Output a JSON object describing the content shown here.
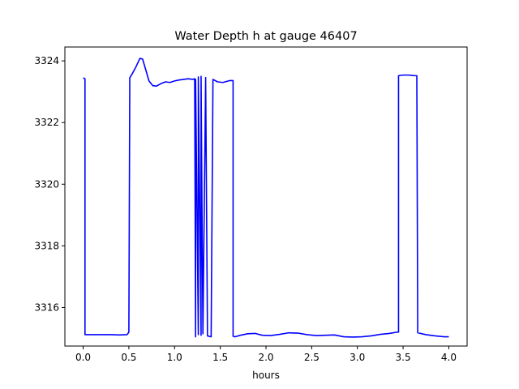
{
  "chart_data": {
    "type": "line",
    "title": "Water Depth h at gauge 46407",
    "xlabel": "hours",
    "ylabel": "",
    "xlim": [
      -0.2,
      4.2
    ],
    "ylim": [
      3314.75,
      3324.45
    ],
    "xticks": [
      0.0,
      0.5,
      1.0,
      1.5,
      2.0,
      2.5,
      3.0,
      3.5,
      4.0
    ],
    "xtick_labels": [
      "0.0",
      "0.5",
      "1.0",
      "1.5",
      "2.0",
      "2.5",
      "3.0",
      "3.5",
      "4.0"
    ],
    "yticks": [
      3316,
      3318,
      3320,
      3322,
      3324
    ],
    "ytick_labels": [
      "3316",
      "3318",
      "3320",
      "3322",
      "3324"
    ],
    "grid": false,
    "series": [
      {
        "color": "#0000ff",
        "x": [
          0.0,
          0.02,
          0.02,
          0.1,
          0.2,
          0.3,
          0.4,
          0.48,
          0.5,
          0.51,
          0.54,
          0.58,
          0.62,
          0.65,
          0.68,
          0.72,
          0.76,
          0.8,
          0.85,
          0.9,
          0.95,
          1.0,
          1.05,
          1.1,
          1.15,
          1.2,
          1.22,
          1.23,
          1.23,
          1.26,
          1.26,
          1.29,
          1.29,
          1.31,
          1.31,
          1.34,
          1.34,
          1.36,
          1.36,
          1.4,
          1.42,
          1.42,
          1.47,
          1.53,
          1.6,
          1.64,
          1.64,
          1.66,
          1.72,
          1.8,
          1.88,
          1.96,
          2.05,
          2.15,
          2.25,
          2.35,
          2.45,
          2.55,
          2.65,
          2.75,
          2.85,
          2.95,
          3.05,
          3.15,
          3.25,
          3.35,
          3.43,
          3.45,
          3.45,
          3.5,
          3.56,
          3.62,
          3.65,
          3.66,
          3.75,
          3.85,
          3.95,
          4.0
        ],
        "y": [
          3323.45,
          3323.42,
          3315.12,
          3315.12,
          3315.12,
          3315.12,
          3315.11,
          3315.12,
          3315.2,
          3323.45,
          3323.6,
          3323.82,
          3324.08,
          3324.06,
          3323.76,
          3323.35,
          3323.2,
          3323.18,
          3323.26,
          3323.32,
          3323.3,
          3323.35,
          3323.38,
          3323.4,
          3323.42,
          3323.4,
          3323.42,
          3315.05,
          3323.4,
          3315.12,
          3323.48,
          3315.1,
          3323.5,
          3315.15,
          3315.15,
          3323.46,
          3323.42,
          3315.08,
          3315.08,
          3315.05,
          3323.38,
          3323.4,
          3323.32,
          3323.3,
          3323.36,
          3323.36,
          3315.07,
          3315.05,
          3315.1,
          3315.15,
          3315.16,
          3315.1,
          3315.09,
          3315.13,
          3315.18,
          3315.17,
          3315.12,
          3315.09,
          3315.1,
          3315.11,
          3315.05,
          3315.04,
          3315.05,
          3315.08,
          3315.13,
          3315.16,
          3315.2,
          3315.2,
          3323.52,
          3323.54,
          3323.54,
          3323.52,
          3323.52,
          3315.18,
          3315.12,
          3315.08,
          3315.05,
          3315.05
        ]
      }
    ]
  }
}
